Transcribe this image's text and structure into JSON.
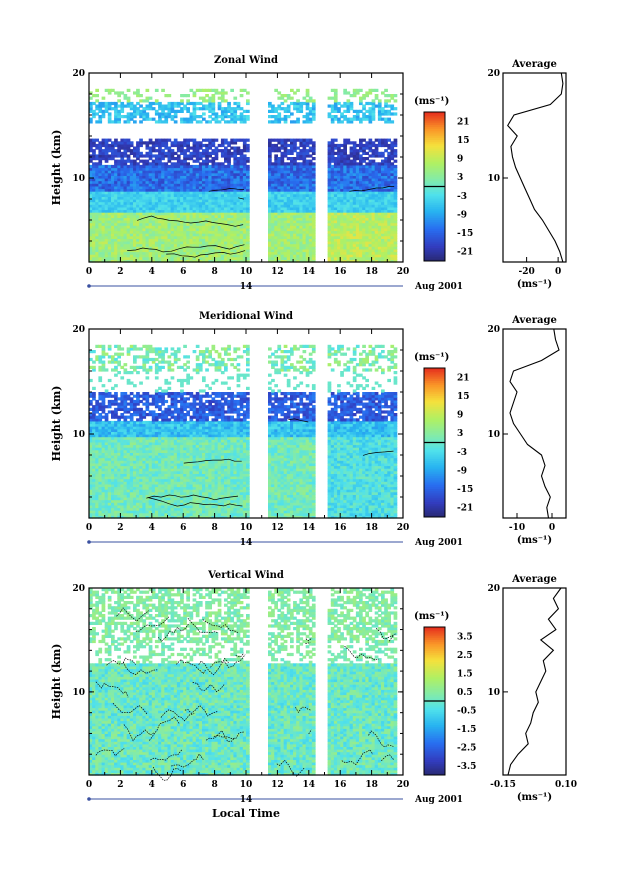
{
  "chart_data": [
    {
      "type": "heatmap",
      "title": "Zonal Wind",
      "ylabel": "Height (km)",
      "xlim": [
        0,
        20
      ],
      "ylim": [
        2,
        20
      ],
      "x_ticks": [
        "0",
        "2",
        "4",
        "6",
        "8",
        "10",
        "12",
        "14",
        "16",
        "18",
        "20"
      ],
      "y_ticks": [
        "10",
        "20"
      ],
      "day_label": "14",
      "date_label": "Aug 2001",
      "colorbar": {
        "unit": "(ms⁻¹)",
        "labels": [
          "21",
          "15",
          "9",
          "3",
          "-3",
          "-9",
          "-15",
          "-21"
        ],
        "range": [
          -24,
          24
        ]
      },
      "data_gaps": [
        [
          10.0,
          11.2
        ],
        [
          14.3,
          15.0
        ]
      ],
      "average_profile": {
        "title": "Average",
        "xlabel": "(ms⁻¹)",
        "x_ticks": [
          "-20",
          "0"
        ],
        "xlim": [
          -35,
          5
        ],
        "heights": [
          2,
          3,
          4,
          5,
          6,
          7,
          8,
          9,
          10,
          11,
          12,
          13,
          14,
          15,
          16,
          17,
          18,
          19,
          20
        ],
        "values": [
          3,
          1,
          -2,
          -6,
          -10,
          -15,
          -18,
          -21,
          -24,
          -27,
          -29,
          -30,
          -26,
          -32,
          -28,
          -5,
          2,
          3,
          2
        ]
      }
    },
    {
      "type": "heatmap",
      "title": "Meridional Wind",
      "ylabel": "Height (km)",
      "xlim": [
        0,
        20
      ],
      "ylim": [
        2,
        20
      ],
      "x_ticks": [
        "0",
        "2",
        "4",
        "6",
        "8",
        "10",
        "12",
        "14",
        "16",
        "18",
        "20"
      ],
      "y_ticks": [
        "10",
        "20"
      ],
      "day_label": "14",
      "date_label": "Aug 2001",
      "colorbar": {
        "unit": "(ms⁻¹)",
        "labels": [
          "21",
          "15",
          "9",
          "3",
          "-3",
          "-9",
          "-15",
          "-21"
        ],
        "range": [
          -24,
          24
        ]
      },
      "data_gaps": [
        [
          10.0,
          11.2
        ],
        [
          14.3,
          15.0
        ]
      ],
      "average_profile": {
        "title": "Average",
        "xlabel": "(ms⁻¹)",
        "x_ticks": [
          "-10",
          "0"
        ],
        "xlim": [
          -14,
          4
        ],
        "heights": [
          2,
          3,
          4,
          5,
          6,
          7,
          8,
          9,
          10,
          11,
          12,
          13,
          14,
          15,
          16,
          17,
          18,
          19,
          20
        ],
        "values": [
          -1,
          -1.5,
          -0.5,
          -2,
          -3,
          -2,
          -3,
          -7,
          -9,
          -11,
          -12,
          -11,
          -10,
          -12,
          -11,
          -3,
          2,
          1,
          0.5
        ]
      }
    },
    {
      "type": "heatmap",
      "title": "Vertical Wind",
      "ylabel": "Height (km)",
      "xlabel": "Local Time",
      "xlim": [
        0,
        20
      ],
      "ylim": [
        2,
        20
      ],
      "x_ticks": [
        "0",
        "2",
        "4",
        "6",
        "8",
        "10",
        "12",
        "14",
        "16",
        "18",
        "20"
      ],
      "y_ticks": [
        "10",
        "20"
      ],
      "day_label": "14",
      "date_label": "Aug 2001",
      "colorbar": {
        "unit": "(ms⁻¹)",
        "labels": [
          "3.5",
          "2.5",
          "1.5",
          "0.5",
          "-0.5",
          "-1.5",
          "-2.5",
          "-3.5"
        ],
        "range": [
          -4,
          4
        ]
      },
      "data_gaps": [
        [
          10.0,
          11.2
        ],
        [
          14.3,
          15.0
        ]
      ],
      "average_profile": {
        "title": "Average",
        "xlabel": "(ms⁻¹)",
        "x_ticks": [
          "-0.15",
          "0.10"
        ],
        "xlim": [
          -0.15,
          0.1
        ],
        "heights": [
          2,
          3,
          4,
          5,
          6,
          7,
          8,
          9,
          10,
          11,
          12,
          13,
          14,
          15,
          16,
          17,
          18,
          19,
          20
        ],
        "values": [
          -0.13,
          -0.12,
          -0.09,
          -0.05,
          -0.06,
          -0.04,
          -0.03,
          -0.01,
          -0.02,
          0.0,
          0.02,
          0.01,
          0.05,
          0.0,
          0.06,
          0.03,
          0.07,
          0.05,
          0.08
        ]
      }
    }
  ]
}
